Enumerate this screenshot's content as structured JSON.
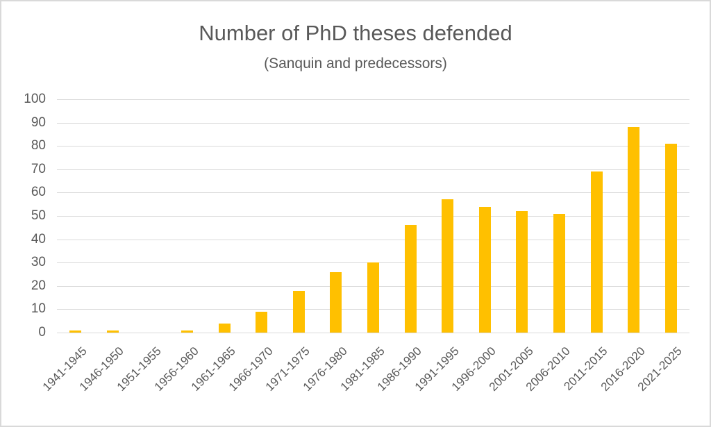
{
  "chart_data": {
    "type": "bar",
    "title": "Number of PhD theses defended",
    "subtitle": "(Sanquin and predecessors)",
    "xlabel": "",
    "ylabel": "",
    "ylim": [
      0,
      100
    ],
    "yticks": [
      0,
      10,
      20,
      30,
      40,
      50,
      60,
      70,
      80,
      90,
      100
    ],
    "grid": true,
    "legend": "none",
    "bar_color": "#ffc000",
    "categories": [
      "1941-1945",
      "1946-1950",
      "1951-1955",
      "1956-1960",
      "1961-1965",
      "1966-1970",
      "1971-1975",
      "1976-1980",
      "1981-1985",
      "1986-1990",
      "1991-1995",
      "1996-2000",
      "2001-2005",
      "2006-2010",
      "2011-2015",
      "2016-2020",
      "2021-2025"
    ],
    "values": [
      1,
      1,
      0,
      1,
      4,
      9,
      18,
      26,
      30,
      46,
      57,
      54,
      52,
      51,
      69,
      88,
      81
    ]
  }
}
